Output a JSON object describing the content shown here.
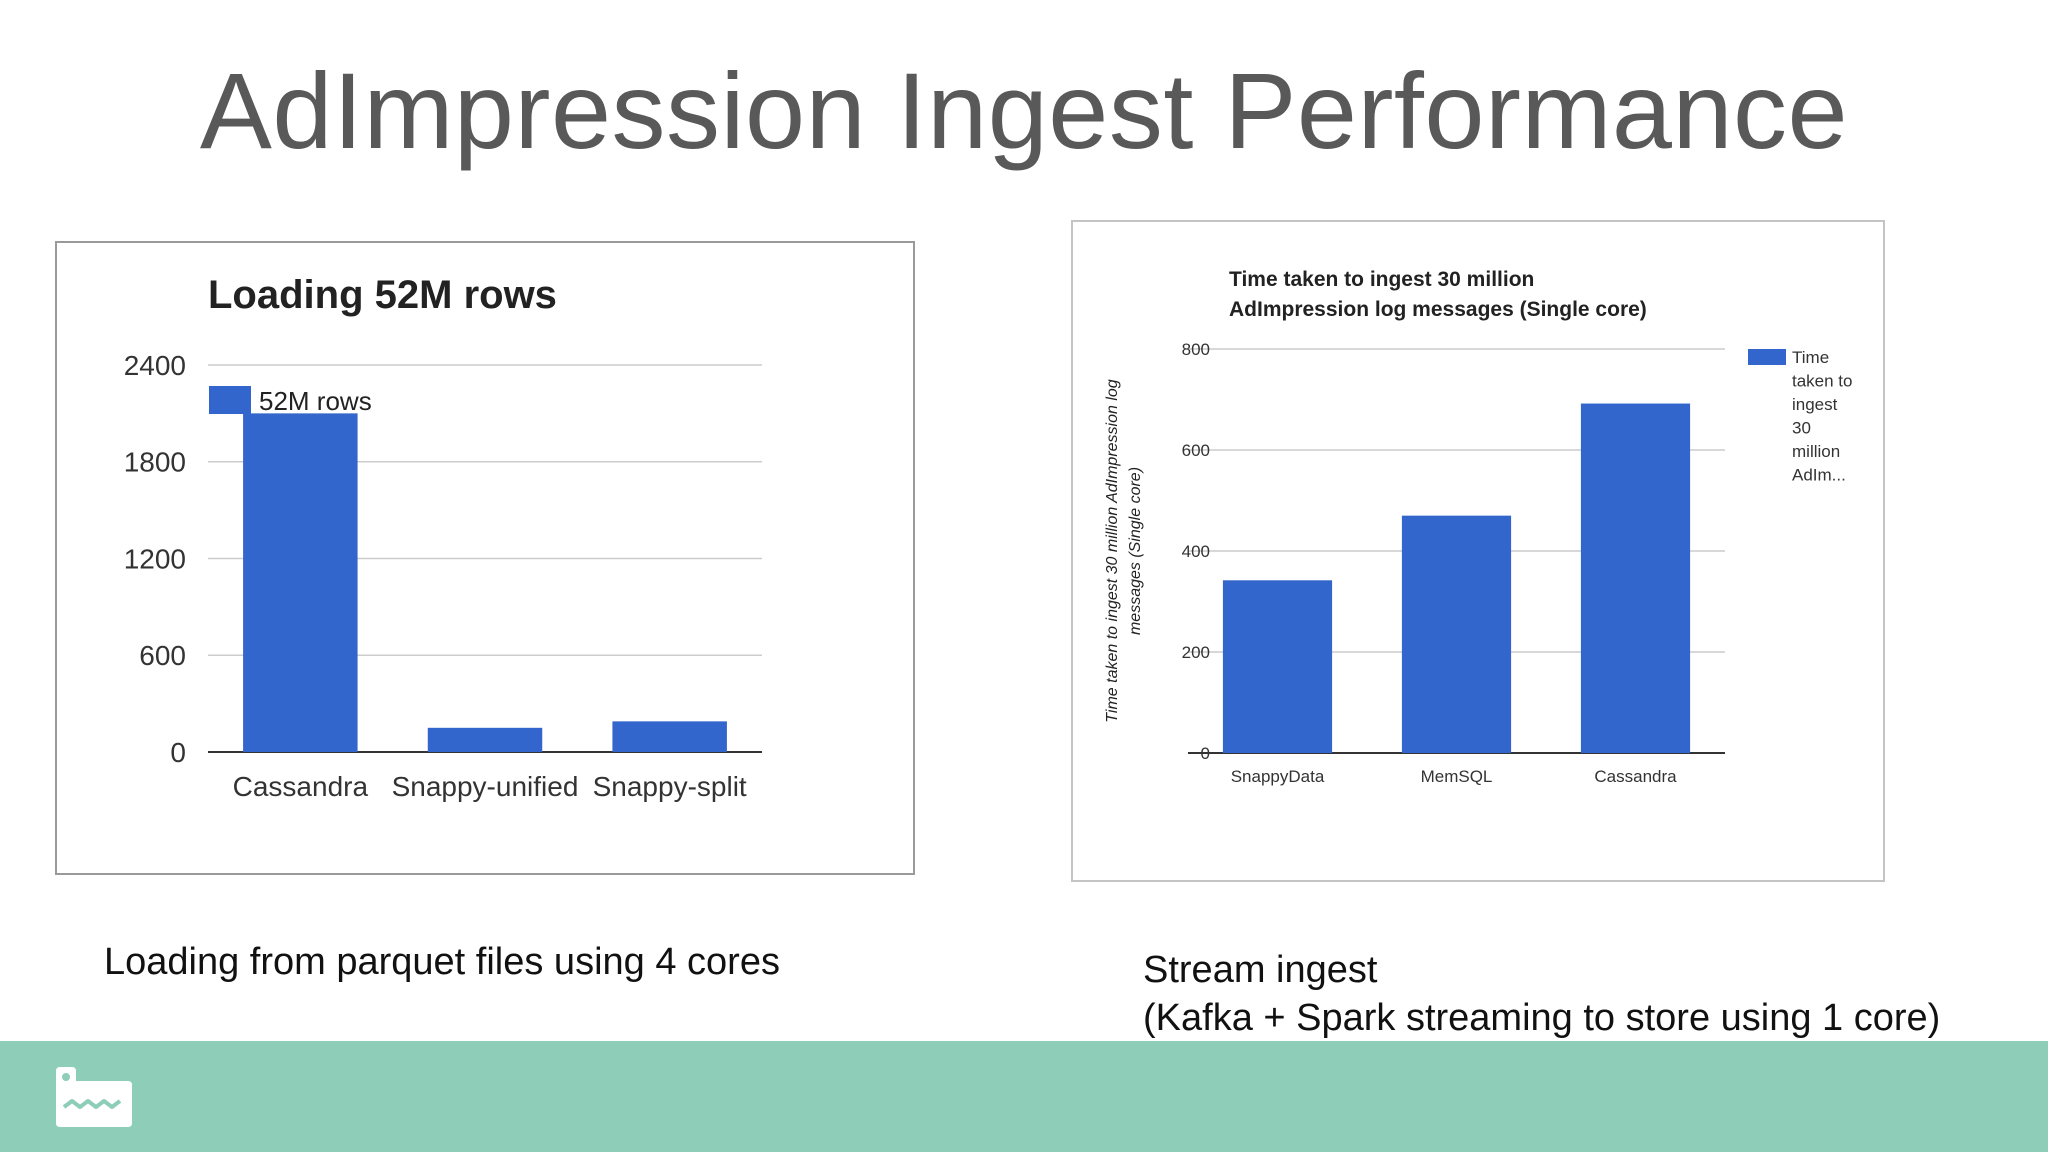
{
  "slide": {
    "title": "AdImpression Ingest Performance",
    "caption_left": "Loading from parquet files using 4 cores",
    "caption_right_line1": "Stream ingest",
    "caption_right_line2": "(Kafka + Spark streaming to store using 1 core)",
    "logo_icon": "snappydata-logo-icon",
    "footer_color": "#8ecdb7"
  },
  "chart_data": [
    {
      "type": "bar",
      "title": "Loading 52M rows",
      "categories": [
        "Cassandra",
        "Snappy-unified",
        "Snappy-split"
      ],
      "series": [
        {
          "name": "52M rows",
          "values": [
            2100,
            150,
            190
          ],
          "color": "#3366cc"
        }
      ],
      "ylim": [
        0,
        2400
      ],
      "yticks": [
        0,
        600,
        1200,
        1800,
        2400
      ],
      "xlabel": "",
      "ylabel": "",
      "grid": true,
      "legend": "top-left, inside plot"
    },
    {
      "type": "bar",
      "title_line1": "Time taken to ingest 30 million",
      "title_line2": "AdImpression log messages (Single core)",
      "categories": [
        "SnappyData",
        "MemSQL",
        "Cassandra"
      ],
      "series": [
        {
          "name": "Time taken to ingest 30 million AdImpression log messages (Single core)",
          "values": [
            342,
            470,
            692
          ],
          "color": "#3366cc"
        }
      ],
      "legend_lines": [
        "Time",
        "taken to",
        "ingest",
        "30",
        "million",
        "AdIm..."
      ],
      "ylim": [
        0,
        800
      ],
      "yticks": [
        0,
        200,
        400,
        600,
        800
      ],
      "xlabel": "",
      "ylabel_line1": "Time taken to ingest 30 million AdImpression log",
      "ylabel_line2": "messages (Single core)",
      "grid": true,
      "legend": "right"
    }
  ]
}
